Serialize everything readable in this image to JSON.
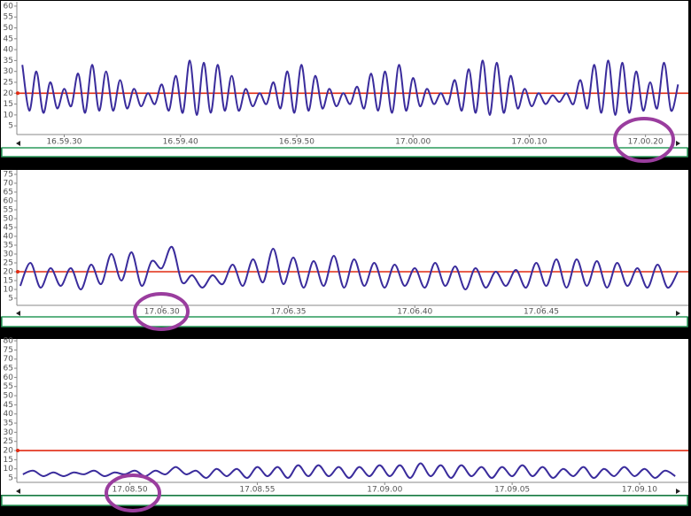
{
  "chart_data": [
    {
      "type": "line",
      "x": [
        61166.4,
        61167,
        61167.6,
        61168.2,
        61168.8,
        61169.4,
        61170,
        61170.6,
        61171.2,
        61171.8,
        61172.4,
        61173,
        61173.6,
        61174.2,
        61174.8,
        61175.4,
        61176,
        61176.6,
        61177.2,
        61177.8,
        61178.4,
        61179,
        61179.6,
        61180.2,
        61180.8,
        61181.4,
        61182,
        61182.6,
        61183.2,
        61183.8,
        61184.4,
        61185,
        61185.6,
        61186.2,
        61186.8,
        61187.4,
        61188,
        61188.6,
        61189.2,
        61189.8,
        61190.4,
        61191,
        61191.6,
        61192.2,
        61192.8,
        61193.4,
        61194,
        61194.6,
        61195.2,
        61195.8,
        61196.4,
        61197,
        61197.6,
        61198.2,
        61198.8,
        61199.4,
        61200,
        61200.6,
        61201.2,
        61201.8,
        61202.4,
        61203,
        61203.6,
        61204.2,
        61204.8,
        61205.4,
        61206,
        61206.6,
        61207.2,
        61207.8,
        61208.4,
        61209,
        61209.6,
        61210.2,
        61210.8,
        61211.4,
        61212,
        61212.6,
        61213.2,
        61213.8,
        61214.4,
        61215,
        61215.6,
        61216.2,
        61216.8,
        61217.4,
        61218,
        61218.6,
        61219.2,
        61219.8,
        61220.4,
        61221,
        61221.6,
        61222.2,
        61222.8
      ],
      "values": [
        33,
        12,
        30,
        11,
        25,
        13,
        22,
        14,
        29,
        11,
        33,
        12,
        30,
        12,
        26,
        13,
        22,
        14,
        20,
        15,
        24,
        12,
        28,
        11,
        35,
        10,
        34,
        11,
        33,
        12,
        28,
        12,
        22,
        14,
        20,
        15,
        25,
        13,
        30,
        11,
        33,
        12,
        28,
        13,
        22,
        14,
        20,
        15,
        23,
        13,
        29,
        12,
        30,
        11,
        33,
        12,
        27,
        14,
        22,
        15,
        20,
        15,
        26,
        12,
        31,
        11,
        35,
        10,
        34,
        11,
        28,
        13,
        22,
        14,
        20,
        15,
        19,
        16,
        20,
        15,
        26,
        13,
        33,
        11,
        35,
        10,
        34,
        11,
        30,
        12,
        25,
        13,
        34,
        12,
        24
      ],
      "color": "#3a2c9c",
      "reference_line": {
        "value": 20,
        "color": "#e02a12"
      },
      "xlim": [
        61166,
        61223
      ],
      "xticks": [
        {
          "value": 61170,
          "label": "16.59.30"
        },
        {
          "value": 61180,
          "label": "16.59.40"
        },
        {
          "value": 61190,
          "label": "16.59.50"
        },
        {
          "value": 61200,
          "label": "17.00.00"
        },
        {
          "value": 61210,
          "label": "17.00.10"
        },
        {
          "value": 61220,
          "label": "17.00.20"
        }
      ],
      "ylim": [
        1,
        62
      ],
      "yticks": [
        5,
        10,
        15,
        20,
        25,
        30,
        35,
        40,
        45,
        50,
        55,
        60
      ]
    },
    {
      "type": "line",
      "x": [
        61584.4,
        61584.8,
        61585.2,
        61585.6,
        61586,
        61586.4,
        61586.8,
        61587.2,
        61587.6,
        61588,
        61588.4,
        61588.8,
        61589.2,
        61589.6,
        61590,
        61590.4,
        61590.8,
        61591.2,
        61591.6,
        61592,
        61592.4,
        61592.8,
        61593.2,
        61593.6,
        61594,
        61594.4,
        61594.8,
        61595.2,
        61595.6,
        61596,
        61596.4,
        61596.8,
        61597.2,
        61597.6,
        61598,
        61598.4,
        61598.8,
        61599.2,
        61599.6,
        61600,
        61600.4,
        61600.8,
        61601.2,
        61601.6,
        61602,
        61602.4,
        61602.8,
        61603.2,
        61603.6,
        61604,
        61604.4,
        61604.8,
        61605.2,
        61605.6,
        61606,
        61606.4,
        61606.8,
        61607.2,
        61607.6,
        61608,
        61608.4,
        61608.8,
        61609.2,
        61609.6,
        61610,
        61610.4
      ],
      "values": [
        12,
        25,
        11,
        22,
        12,
        22,
        10,
        24,
        13,
        30,
        15,
        31,
        12,
        26,
        22,
        34,
        14,
        18,
        11,
        18,
        13,
        24,
        12,
        27,
        14,
        33,
        13,
        28,
        11,
        26,
        12,
        29,
        11,
        27,
        12,
        25,
        11,
        24,
        12,
        22,
        11,
        25,
        12,
        23,
        10,
        22,
        11,
        20,
        12,
        21,
        11,
        25,
        12,
        27,
        11,
        27,
        12,
        26,
        11,
        25,
        12,
        22,
        11,
        24,
        11,
        20
      ],
      "color": "#3a2c9c",
      "reference_line": {
        "value": 20,
        "color": "#e02a12"
      },
      "xlim": [
        61584.3,
        61610.5
      ],
      "xticks": [
        {
          "value": 61590,
          "label": "17.06.30"
        },
        {
          "value": 61595,
          "label": "17.06.35"
        },
        {
          "value": 61600,
          "label": "17.06.40"
        },
        {
          "value": 61605,
          "label": "17.06.45"
        }
      ],
      "ylim": [
        1,
        77.5
      ],
      "yticks": [
        5,
        10,
        15,
        20,
        25,
        30,
        35,
        40,
        45,
        50,
        55,
        60,
        65,
        70,
        75
      ]
    },
    {
      "type": "line",
      "x": [
        61725.8,
        61726.2,
        61726.6,
        61727,
        61727.4,
        61727.8,
        61728.2,
        61728.6,
        61729,
        61729.4,
        61729.8,
        61730.2,
        61730.6,
        61731,
        61731.4,
        61731.8,
        61732.2,
        61732.6,
        61733,
        61733.4,
        61733.8,
        61734.2,
        61734.6,
        61735,
        61735.4,
        61735.8,
        61736.2,
        61736.6,
        61737,
        61737.4,
        61737.8,
        61738.2,
        61738.6,
        61739,
        61739.4,
        61739.8,
        61740.2,
        61740.6,
        61741,
        61741.4,
        61741.8,
        61742.2,
        61742.6,
        61743,
        61743.4,
        61743.8,
        61744.2,
        61744.6,
        61745,
        61745.4,
        61745.8,
        61746.2,
        61746.6,
        61747,
        61747.4,
        61747.8,
        61748.2,
        61748.6,
        61749,
        61749.4,
        61749.8,
        61750.2,
        61750.6,
        61751,
        61751.4
      ],
      "values": [
        7,
        9,
        6,
        8,
        6,
        8,
        7,
        9,
        6,
        8,
        7,
        9,
        6,
        9,
        7,
        11,
        7,
        9,
        5,
        10,
        6,
        10,
        5,
        11,
        6,
        11,
        5,
        12,
        6,
        12,
        6,
        11,
        5,
        11,
        6,
        12,
        6,
        12,
        5,
        13,
        6,
        12,
        5,
        12,
        6,
        11,
        5,
        11,
        6,
        12,
        6,
        11,
        5,
        10,
        6,
        11,
        5,
        10,
        6,
        11,
        6,
        10,
        5,
        9,
        6
      ],
      "color": "#3a2c9c",
      "reference_line": {
        "value": 20,
        "color": "#e02a12"
      },
      "xlim": [
        61725.6,
        61751.6
      ],
      "xticks": [
        {
          "value": 61730,
          "label": "17.08.50"
        },
        {
          "value": 61735,
          "label": "17.08.55"
        },
        {
          "value": 61740,
          "label": "17.09.00"
        },
        {
          "value": 61745,
          "label": "17.09.05"
        },
        {
          "value": 61750,
          "label": "17.09.10"
        }
      ],
      "ylim": [
        2.6,
        81
      ],
      "yticks": [
        5,
        10,
        15,
        20,
        25,
        30,
        35,
        40,
        45,
        50,
        55,
        60,
        65,
        70,
        75,
        80
      ]
    }
  ]
}
